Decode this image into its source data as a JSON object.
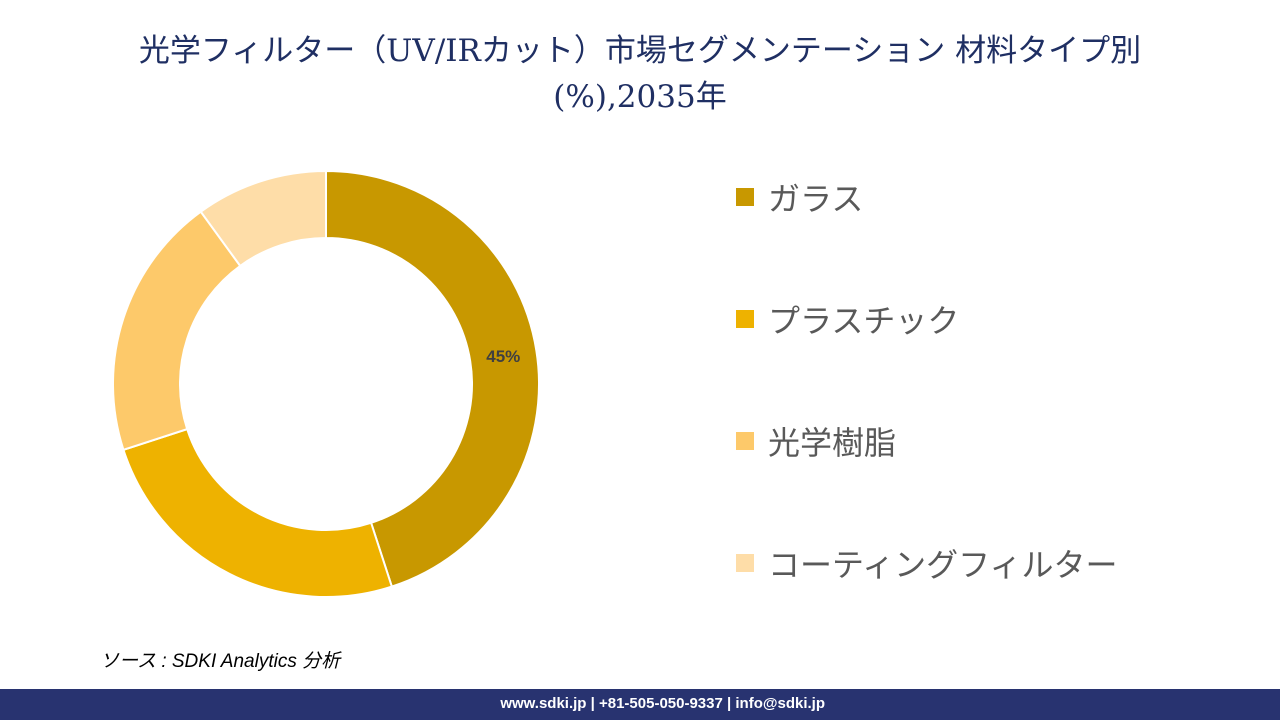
{
  "title": {
    "line1": "光学フィルター（UV/IRカット）市場セグメンテーション 材料タイプ別",
    "line2": "(%),2035年"
  },
  "chart_data": {
    "type": "pie",
    "variant": "donut",
    "title": "光学フィルター（UV/IRカット）市場セグメンテーション 材料タイプ別 (%),2035年",
    "categories": [
      "ガラス",
      "プラスチック",
      "光学樹脂",
      "コーティングフィルター"
    ],
    "values": [
      45,
      25,
      20,
      10
    ],
    "colors": [
      "#C89800",
      "#EEB200",
      "#FDC96A",
      "#FEDDA8"
    ],
    "data_labels": [
      "45%",
      "",
      "",
      ""
    ],
    "legend_position": "right"
  },
  "legend": {
    "items": [
      {
        "label": "ガラス",
        "color": "#C89800"
      },
      {
        "label": "プラスチック",
        "color": "#EEB200"
      },
      {
        "label": "光学樹脂",
        "color": "#FDC96A"
      },
      {
        "label": "コーティングフィルター",
        "color": "#FEDDA8"
      }
    ]
  },
  "source": "ソース : SDKI Analytics 分析",
  "footer": {
    "contact": "www.sdki.jp | +81-505-050-9337 | info@sdki.jp",
    "color": "#283370"
  }
}
